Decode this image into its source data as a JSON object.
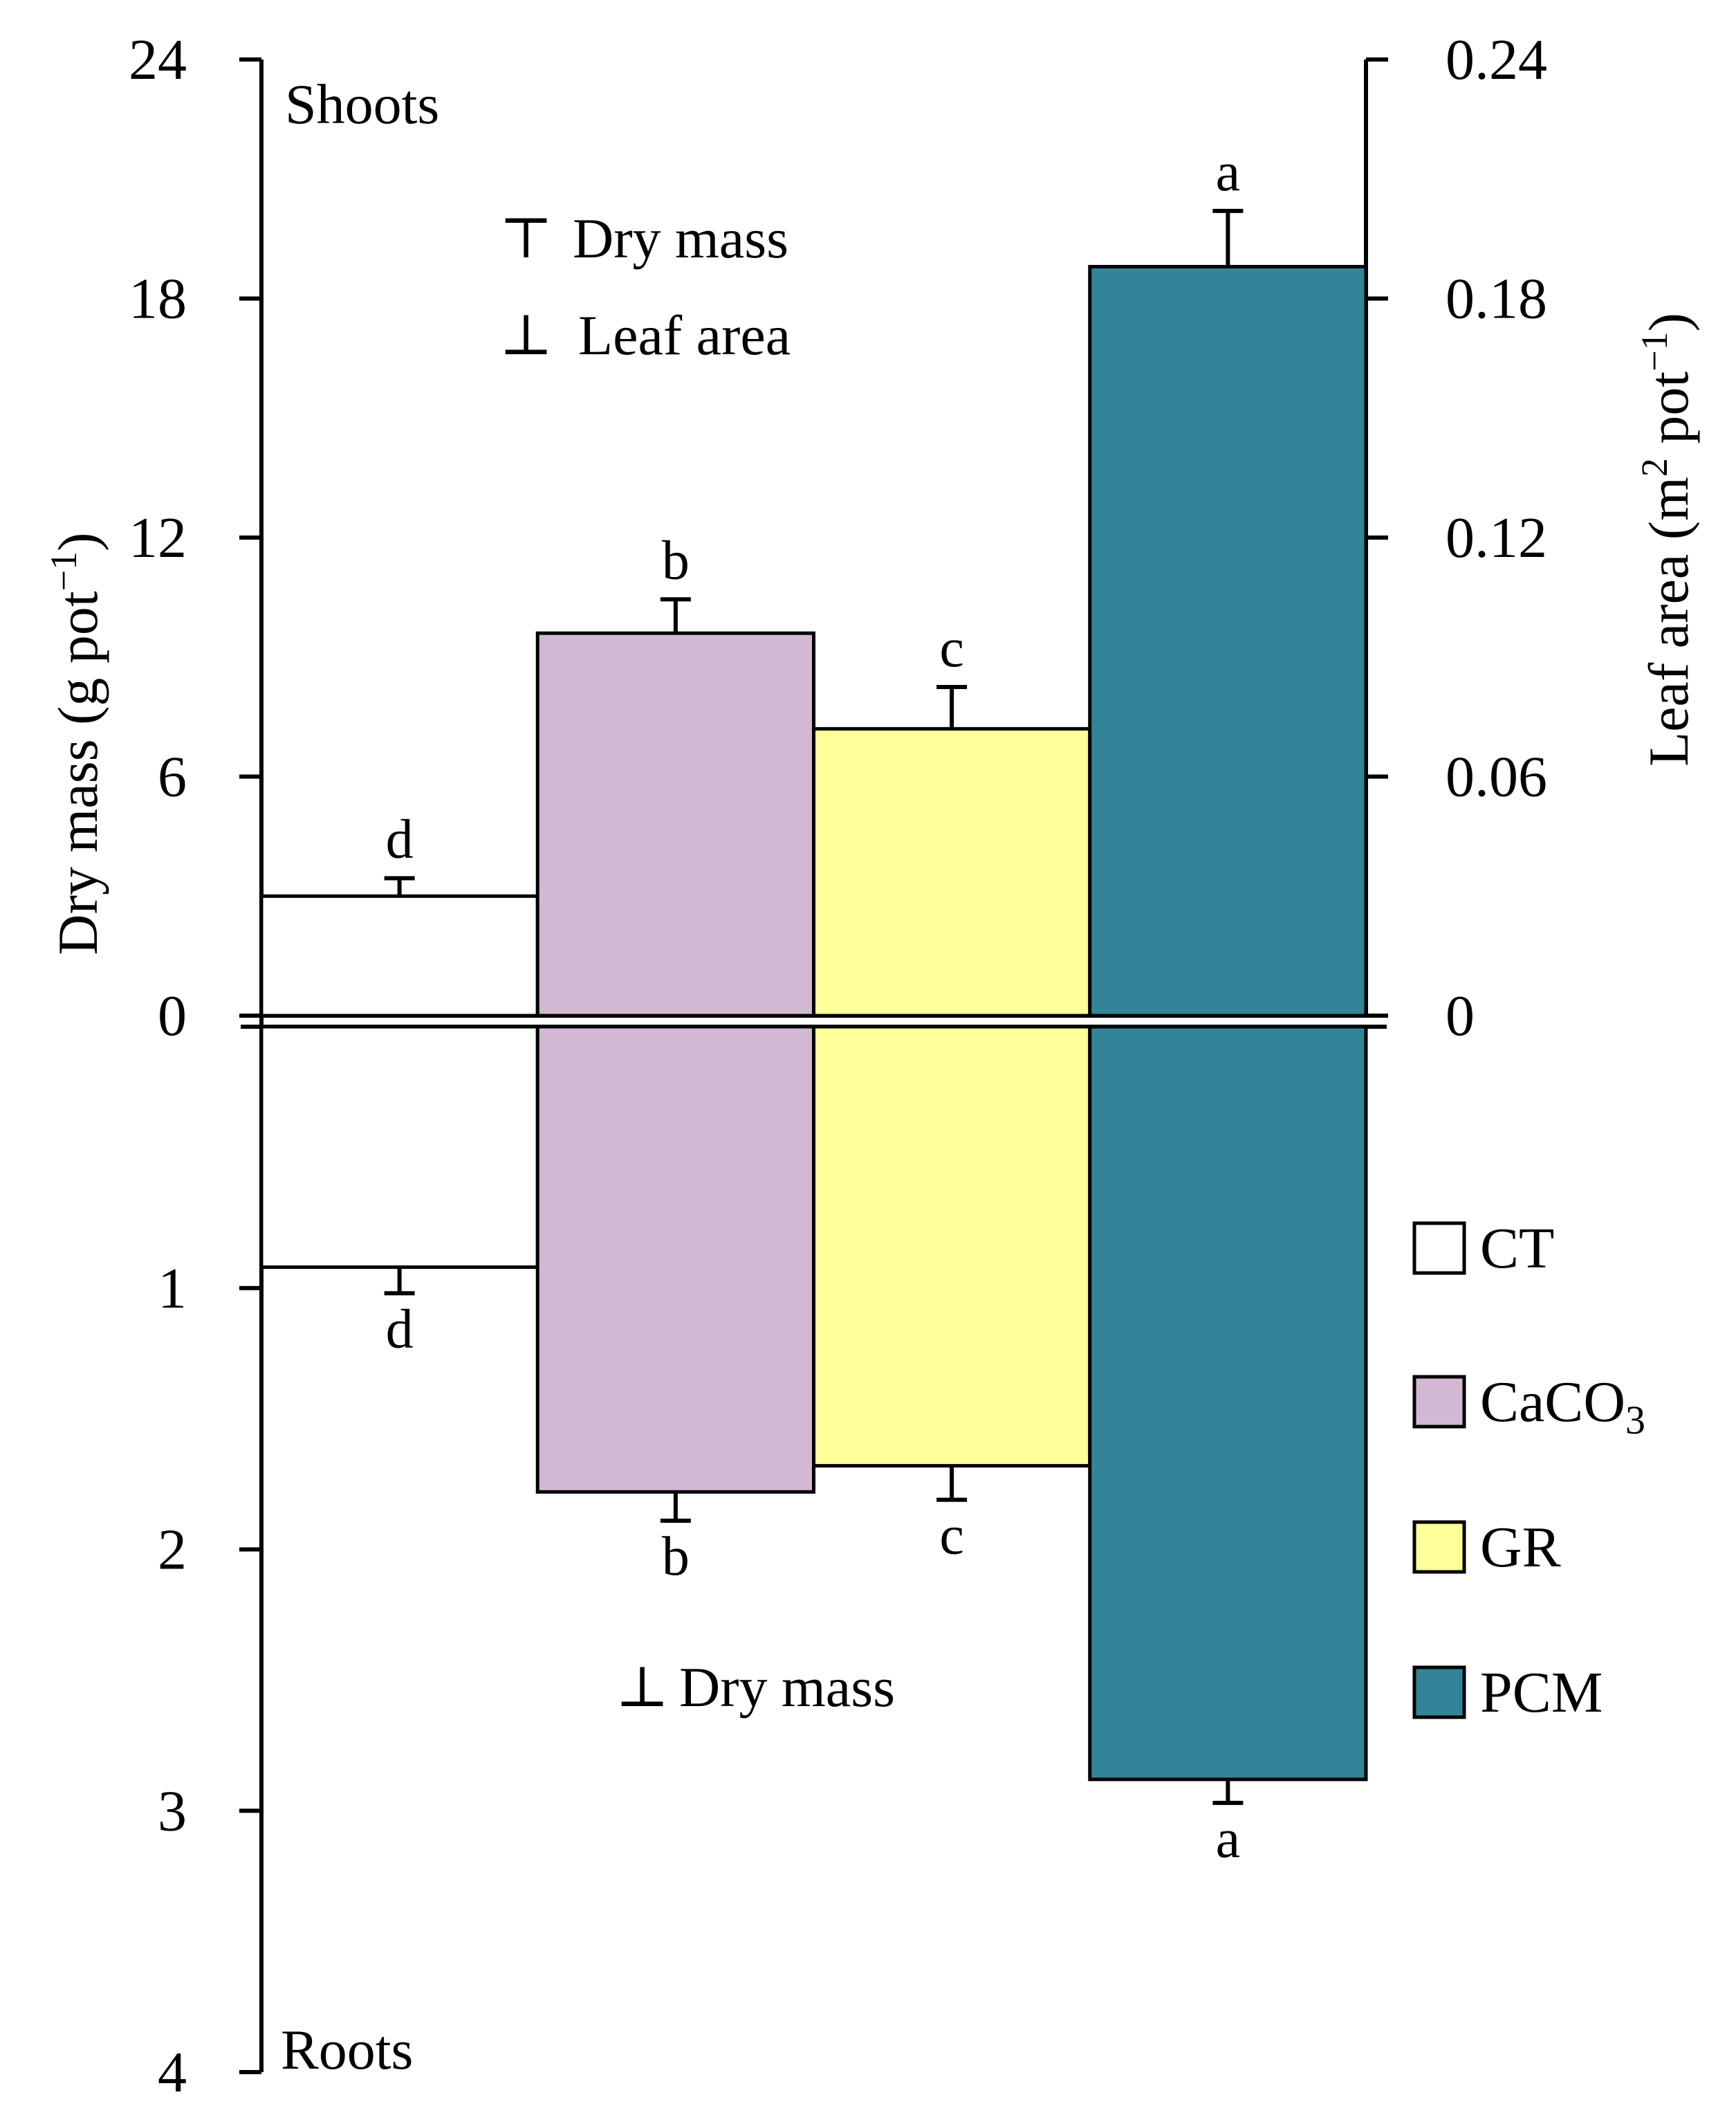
{
  "chart_data": {
    "type": "bar",
    "categories": [
      "CT",
      "CaCO3",
      "GR",
      "PCM"
    ],
    "panels": {
      "shoots": {
        "label": "Shoots",
        "series": [
          {
            "name": "Dry mass",
            "values": [
              3.0,
              9.6,
              7.2,
              18.8
            ],
            "errors": [
              0.45,
              0.85,
              1.05,
              1.4
            ],
            "significance": [
              "d",
              "b",
              "c",
              "a"
            ]
          }
        ]
      },
      "roots": {
        "label": "Roots",
        "series": [
          {
            "name": "Dry mass",
            "values": [
              0.92,
              1.78,
              1.68,
              2.88
            ],
            "errors": [
              0.1,
              0.11,
              0.13,
              0.09
            ],
            "significance": [
              "d",
              "b",
              "c",
              "a"
            ]
          }
        ]
      }
    },
    "y_left_label": "Dry mass (g pot",
    "y_left_label_sup": "−1",
    "y_left_label_close": ")",
    "y_left_ticks_top": [
      "24",
      "18",
      "12",
      "6",
      "0"
    ],
    "y_left_ticks_bottom": [
      "1",
      "2",
      "3",
      "4"
    ],
    "y_right_label": "Leaf area (m",
    "y_right_label_sup1": "2",
    "y_right_label_mid": " pot",
    "y_right_label_sup2": "−1",
    "y_right_label_close": ")",
    "y_right_ticks": [
      "0.24",
      "0.18",
      "0.12",
      "0.06",
      "0"
    ],
    "ylim_shoots": [
      0,
      24
    ],
    "ylim_roots": [
      0,
      4
    ],
    "annotations": {
      "top_dry_mass_symbol": "⊤",
      "top_dry_mass": "Dry mass",
      "top_leaf_area_symbol": "⊥",
      "top_leaf_area": "Leaf area",
      "bottom_dry_mass_symbol": "⊥",
      "bottom_dry_mass": "Dry mass"
    },
    "legend": [
      {
        "label": "CT",
        "color": "#ffffff"
      },
      {
        "label": "CaCO",
        "sub": "3",
        "color": "#d2b8d2"
      },
      {
        "label": "GR",
        "color": "#ffff99"
      },
      {
        "label": "PCM",
        "color": "#338499"
      }
    ],
    "colors": {
      "left_axis_title": "#c05a10",
      "right_axis_title": "#2e6e8e"
    }
  }
}
